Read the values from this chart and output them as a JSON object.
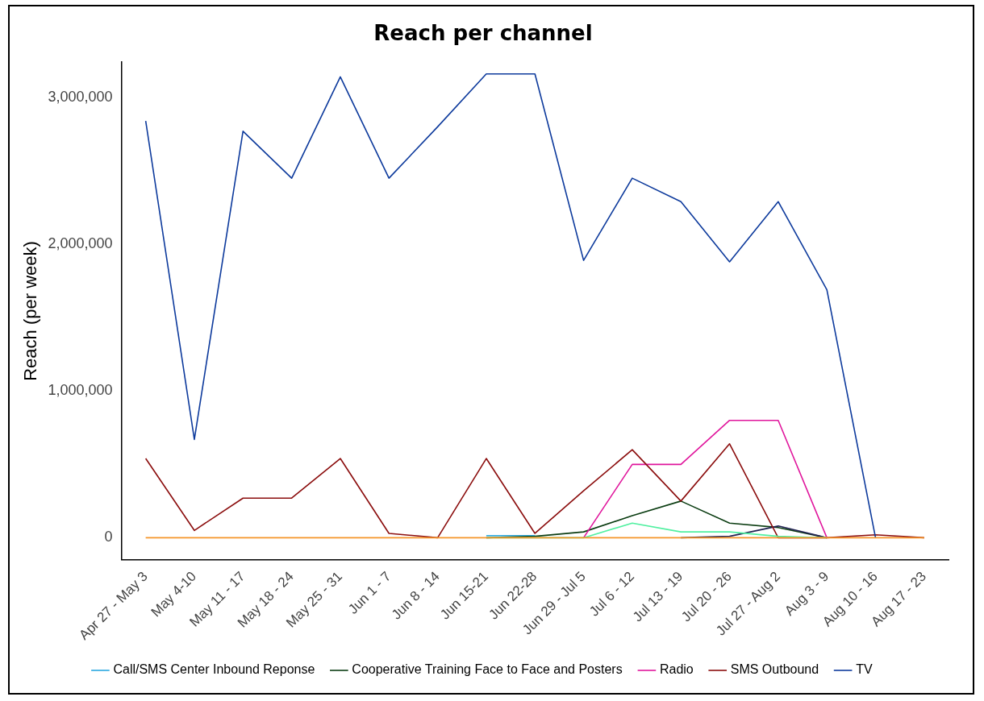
{
  "chart_data": {
    "type": "line",
    "title": "Reach per channel",
    "ylabel": "Reach (per week)",
    "categories": [
      "Apr 27 - May 3",
      "May 4-10",
      "May 11 - 17",
      "May 18 - 24",
      "May 25 - 31",
      "Jun 1 - 7",
      "Jun 8 - 14",
      "Jun 15-21",
      "Jun 22-28",
      "Jun 29 - Jul 5",
      "Jul 6 - 12",
      "Jul 13 - 19",
      "Jul 20 - 26",
      "Jul 27 - Aug 2",
      "Aug 3 - 9",
      "Aug 10 - 16",
      "Aug 17 - 23"
    ],
    "ylim": [
      -150000,
      3240000
    ],
    "yticks": [
      {
        "value": 0,
        "label": "0"
      },
      {
        "value": 1000000,
        "label": "1,000,000"
      },
      {
        "value": 2000000,
        "label": "2,000,000"
      },
      {
        "value": 3000000,
        "label": "3,000,000"
      }
    ],
    "grid": false,
    "legend": "bottom",
    "marker": "none",
    "line_style": "solid",
    "series": [
      {
        "name": "Call/SMS Center Inbound Reponse",
        "color": "#29a8e0",
        "values": [
          null,
          null,
          null,
          null,
          null,
          null,
          null,
          15000,
          15000,
          null,
          null,
          null,
          null,
          null,
          null,
          null,
          null
        ]
      },
      {
        "name": "Cooperative Training Face to Face and Posters",
        "color": "#0b3d12",
        "values": [
          null,
          null,
          null,
          null,
          null,
          null,
          null,
          0,
          10000,
          40000,
          150000,
          250000,
          100000,
          70000,
          0,
          null,
          null
        ]
      },
      {
        "color": "#1f2050",
        "values": [
          null,
          null,
          null,
          null,
          null,
          null,
          null,
          null,
          null,
          null,
          null,
          0,
          10000,
          80000,
          0,
          null,
          null
        ]
      },
      {
        "name": "Radio",
        "color": "#e0169c",
        "values": [
          null,
          null,
          null,
          null,
          null,
          null,
          null,
          null,
          null,
          0,
          500000,
          500000,
          800000,
          800000,
          0,
          null,
          null
        ]
      },
      {
        "name": "SMS Outbound",
        "color": "#8b0d0d",
        "values": [
          540000,
          50000,
          270000,
          270000,
          540000,
          30000,
          0,
          540000,
          30000,
          320000,
          600000,
          250000,
          640000,
          0,
          0,
          20000,
          0
        ]
      },
      {
        "name": "TV",
        "color": "#0d3a9c",
        "values": [
          2840000,
          670000,
          2770000,
          2450000,
          3140000,
          2450000,
          2800000,
          3160000,
          3160000,
          1890000,
          2450000,
          2290000,
          1880000,
          2290000,
          1690000,
          0,
          null
        ]
      },
      {
        "color": "#50f0a0",
        "values": [
          null,
          null,
          null,
          null,
          null,
          null,
          null,
          0,
          0,
          0,
          100000,
          40000,
          40000,
          10000,
          0,
          null,
          null
        ]
      },
      {
        "color": "#f5952a",
        "values": [
          0,
          0,
          0,
          0,
          0,
          0,
          0,
          0,
          0,
          0,
          0,
          0,
          0,
          0,
          0,
          0,
          0
        ]
      }
    ]
  }
}
